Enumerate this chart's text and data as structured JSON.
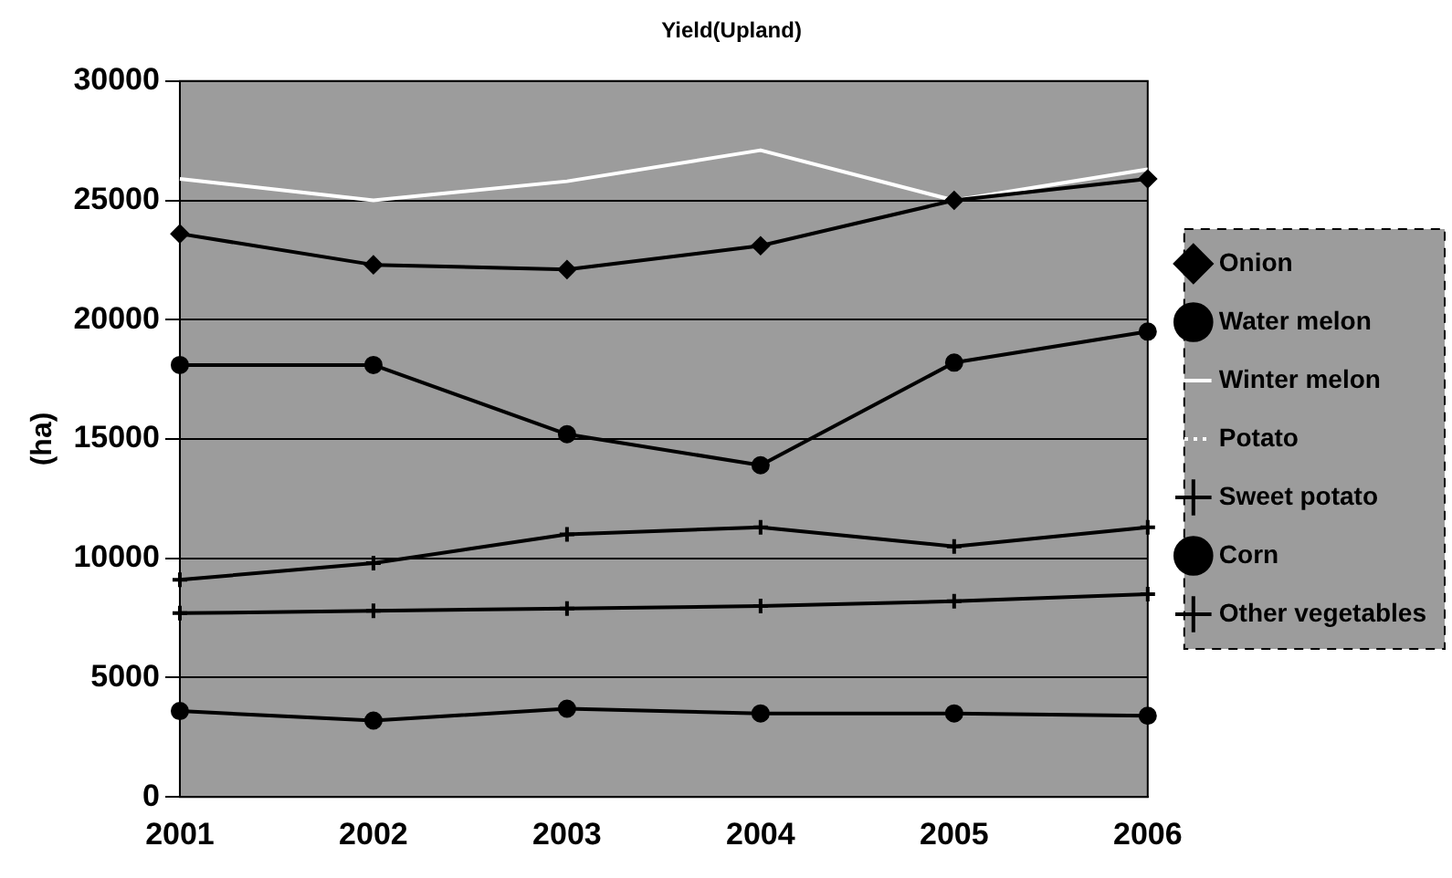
{
  "chart_data": {
    "type": "line",
    "title": "Yield(Upland)",
    "ylabel": "(ha)",
    "categories": [
      "2001",
      "2002",
      "2003",
      "2004",
      "2005",
      "2006"
    ],
    "ylim": [
      0,
      30000
    ],
    "yticks": [
      0,
      5000,
      10000,
      15000,
      20000,
      25000,
      30000
    ],
    "grid": "y",
    "legend": "right",
    "line_style": "solid",
    "series": [
      {
        "name": "Onion",
        "color": "#000000",
        "marker": "diamond",
        "values": [
          23600,
          22300,
          22100,
          23100,
          25000,
          25900
        ]
      },
      {
        "name": "Water melon",
        "color": "#000000",
        "marker": "circle",
        "values": [
          18100,
          18100,
          15200,
          13900,
          18200,
          19500
        ]
      },
      {
        "name": "Winter melon",
        "color": "#ffffff",
        "marker": "none",
        "values": [
          25900,
          25000,
          25800,
          27100,
          25000,
          26300
        ]
      },
      {
        "name": "Potato",
        "color": "#ffffff",
        "marker": "none",
        "line_style": "dotted",
        "values": [
          null,
          null,
          null,
          null,
          null,
          null
        ]
      },
      {
        "name": "Sweet potato",
        "color": "#000000",
        "marker": "cross",
        "values": [
          9100,
          9800,
          11000,
          11300,
          10500,
          11300
        ]
      },
      {
        "name": "Corn",
        "color": "#000000",
        "marker": "circle",
        "values": [
          3600,
          3200,
          3700,
          3500,
          3500,
          3400
        ]
      },
      {
        "name": "Other vegetables",
        "color": "#000000",
        "marker": "cross",
        "values": [
          7700,
          7800,
          7900,
          8000,
          8200,
          8500
        ]
      }
    ]
  }
}
